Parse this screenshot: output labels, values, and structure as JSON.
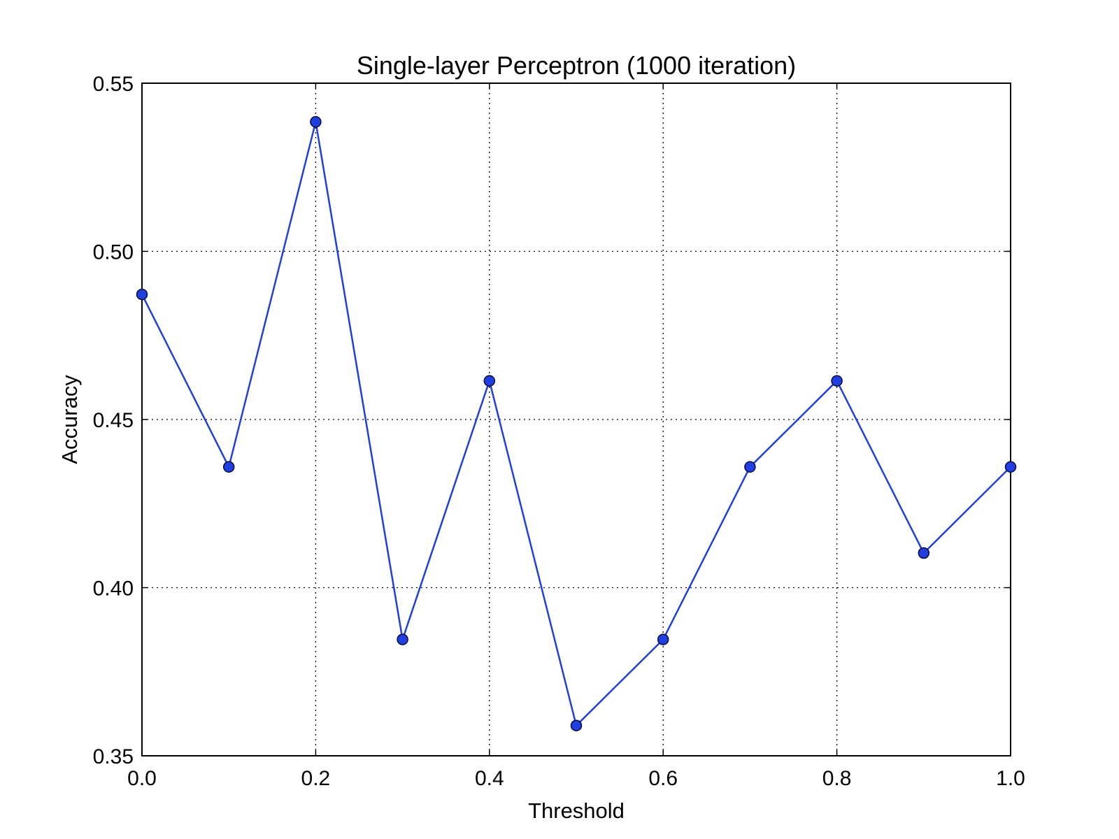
{
  "chart_data": {
    "type": "line",
    "title": "Single-layer Perceptron (1000 iteration)",
    "xlabel": "Threshold",
    "ylabel": "Accuracy",
    "xlim": [
      0.0,
      1.0
    ],
    "ylim": [
      0.35,
      0.55
    ],
    "grid": true,
    "x_ticks": [
      0.0,
      0.2,
      0.4,
      0.6,
      0.8,
      1.0
    ],
    "x_tick_labels": [
      "0.0",
      "0.2",
      "0.4",
      "0.6",
      "0.8",
      "1.0"
    ],
    "y_ticks": [
      0.35,
      0.4,
      0.45,
      0.5,
      0.55
    ],
    "y_tick_labels": [
      "0.35",
      "0.40",
      "0.45",
      "0.50",
      "0.55"
    ],
    "series": [
      {
        "name": "Accuracy",
        "color": "#1f3fe0",
        "marker": "circle",
        "x": [
          0.0,
          0.1,
          0.2,
          0.3,
          0.4,
          0.5,
          0.6,
          0.7,
          0.8,
          0.9,
          1.0
        ],
        "values": [
          0.4872,
          0.4359,
          0.5385,
          0.3846,
          0.4615,
          0.359,
          0.3846,
          0.4359,
          0.4615,
          0.4103,
          0.4359
        ]
      }
    ]
  }
}
